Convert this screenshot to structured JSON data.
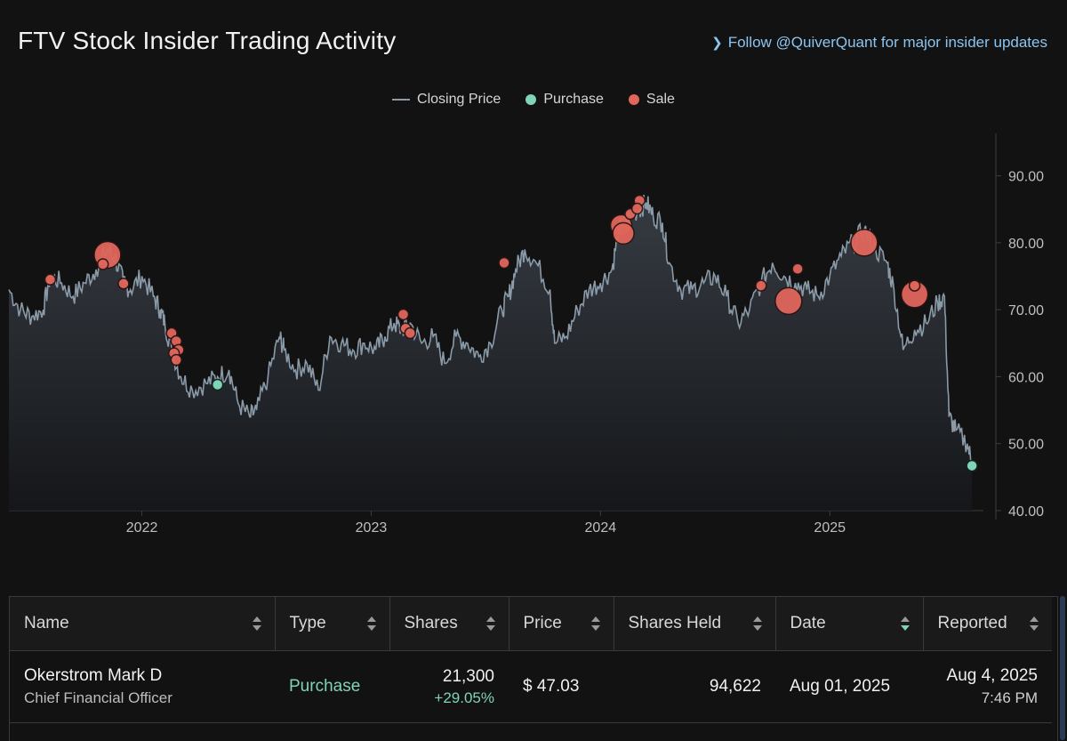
{
  "header": {
    "title": "FTV Stock Insider Trading Activity",
    "follow_link": "Follow @QuiverQuant for major insider updates"
  },
  "legend": {
    "closing_price": "Closing Price",
    "purchase": "Purchase",
    "sale": "Sale"
  },
  "colors": {
    "background": "#121212",
    "line": "#8a9aa8",
    "purchase": "#7fd3b6",
    "sale": "#e0665c",
    "link": "#8cc4f0"
  },
  "chart_data": {
    "type": "line",
    "title": "FTV Stock Insider Trading Activity",
    "xlabel": "",
    "ylabel": "",
    "xlim": [
      2021.42,
      2025.67
    ],
    "ylim": [
      40,
      95
    ],
    "y_ticks": [
      "90.00",
      "80.00",
      "70.00",
      "60.00",
      "50.00",
      "40.00"
    ],
    "y_tick_values": [
      90,
      80,
      70,
      60,
      50,
      40
    ],
    "x_ticks": [
      "2022",
      "2023",
      "2024",
      "2025"
    ],
    "x_tick_values": [
      2022,
      2023,
      2024,
      2025
    ],
    "series": [
      {
        "name": "Closing Price",
        "x": [
          2021.42,
          2021.47,
          2021.52,
          2021.57,
          2021.6,
          2021.65,
          2021.7,
          2021.75,
          2021.8,
          2021.85,
          2021.88,
          2021.92,
          2021.95,
          2022.0,
          2022.05,
          2022.08,
          2022.1,
          2022.13,
          2022.17,
          2022.22,
          2022.28,
          2022.33,
          2022.38,
          2022.42,
          2022.47,
          2022.5,
          2022.55,
          2022.6,
          2022.62,
          2022.67,
          2022.72,
          2022.77,
          2022.82,
          2022.87,
          2022.92,
          2022.97,
          2023.02,
          2023.06,
          2023.1,
          2023.13,
          2023.17,
          2023.22,
          2023.27,
          2023.32,
          2023.37,
          2023.42,
          2023.47,
          2023.52,
          2023.57,
          2023.6,
          2023.63,
          2023.67,
          2023.72,
          2023.78,
          2023.8,
          2023.85,
          2023.9,
          2023.95,
          2024.0,
          2024.05,
          2024.08,
          2024.1,
          2024.13,
          2024.17,
          2024.2,
          2024.23,
          2024.27,
          2024.3,
          2024.35,
          2024.4,
          2024.45,
          2024.5,
          2024.55,
          2024.6,
          2024.65,
          2024.7,
          2024.75,
          2024.8,
          2024.85,
          2024.9,
          2024.95,
          2025.0,
          2025.05,
          2025.1,
          2025.15,
          2025.2,
          2025.25,
          2025.28,
          2025.32,
          2025.37,
          2025.42,
          2025.47,
          2025.5,
          2025.52,
          2025.55,
          2025.6,
          2025.62
        ],
        "values": [
          73,
          70,
          69,
          70,
          75,
          74,
          72,
          74,
          76,
          79,
          78,
          74,
          73,
          75,
          72,
          70,
          68,
          64,
          60,
          58,
          59,
          60,
          61,
          56,
          54,
          55,
          60,
          66,
          64,
          61,
          62,
          58,
          66,
          65,
          64,
          65,
          64,
          66,
          68,
          67,
          68,
          65,
          66,
          62,
          66,
          65,
          63,
          65,
          70,
          72,
          76,
          79,
          77,
          73,
          65,
          66,
          70,
          73,
          74,
          76,
          82,
          83,
          84,
          85,
          86,
          84,
          83,
          77,
          73,
          73,
          74,
          75,
          72,
          68,
          70,
          74,
          77,
          75,
          74,
          73,
          72,
          75,
          78,
          80,
          82,
          79,
          77,
          73,
          64,
          67,
          68,
          71,
          72,
          54,
          52,
          50,
          47
        ]
      }
    ],
    "purchases": [
      {
        "x": 2022.33,
        "y": 58.8,
        "size": "small"
      },
      {
        "x": 2025.62,
        "y": 46.7,
        "size": "small"
      }
    ],
    "sales": [
      {
        "x": 2021.6,
        "y": 74.5,
        "size": "small"
      },
      {
        "x": 2021.85,
        "y": 78.2,
        "size": "large"
      },
      {
        "x": 2021.83,
        "y": 76.8,
        "size": "small"
      },
      {
        "x": 2021.92,
        "y": 73.9,
        "size": "small"
      },
      {
        "x": 2022.13,
        "y": 66.5,
        "size": "small"
      },
      {
        "x": 2022.15,
        "y": 65.3,
        "size": "small"
      },
      {
        "x": 2022.16,
        "y": 64.0,
        "size": "small"
      },
      {
        "x": 2022.14,
        "y": 63.5,
        "size": "small"
      },
      {
        "x": 2022.15,
        "y": 62.5,
        "size": "small"
      },
      {
        "x": 2023.14,
        "y": 69.3,
        "size": "small"
      },
      {
        "x": 2023.15,
        "y": 67.2,
        "size": "small"
      },
      {
        "x": 2023.17,
        "y": 66.5,
        "size": "small"
      },
      {
        "x": 2023.58,
        "y": 77.0,
        "size": "small"
      },
      {
        "x": 2024.09,
        "y": 82.6,
        "size": "medium"
      },
      {
        "x": 2024.1,
        "y": 81.4,
        "size": "medium"
      },
      {
        "x": 2024.13,
        "y": 84.3,
        "size": "small"
      },
      {
        "x": 2024.17,
        "y": 86.3,
        "size": "small"
      },
      {
        "x": 2024.16,
        "y": 85.1,
        "size": "small"
      },
      {
        "x": 2024.7,
        "y": 73.6,
        "size": "small"
      },
      {
        "x": 2024.82,
        "y": 71.3,
        "size": "large"
      },
      {
        "x": 2024.86,
        "y": 76.1,
        "size": "small"
      },
      {
        "x": 2025.15,
        "y": 80.0,
        "size": "large"
      },
      {
        "x": 2025.37,
        "y": 72.3,
        "size": "large"
      },
      {
        "x": 2025.37,
        "y": 73.6,
        "size": "small"
      }
    ]
  },
  "table": {
    "columns": [
      "Name",
      "Type",
      "Shares",
      "Price",
      "Shares Held",
      "Date",
      "Reported"
    ],
    "rows": [
      {
        "name": "Okerstrom Mark D",
        "title": "Chief Financial Officer",
        "type": "Purchase",
        "shares": "21,300",
        "shares_change": "+29.05%",
        "price": "$ 47.03",
        "shares_held": "94,622",
        "date": "Aug 01, 2025",
        "reported_date": "Aug 4, 2025",
        "reported_time": "7:46 PM"
      }
    ]
  }
}
